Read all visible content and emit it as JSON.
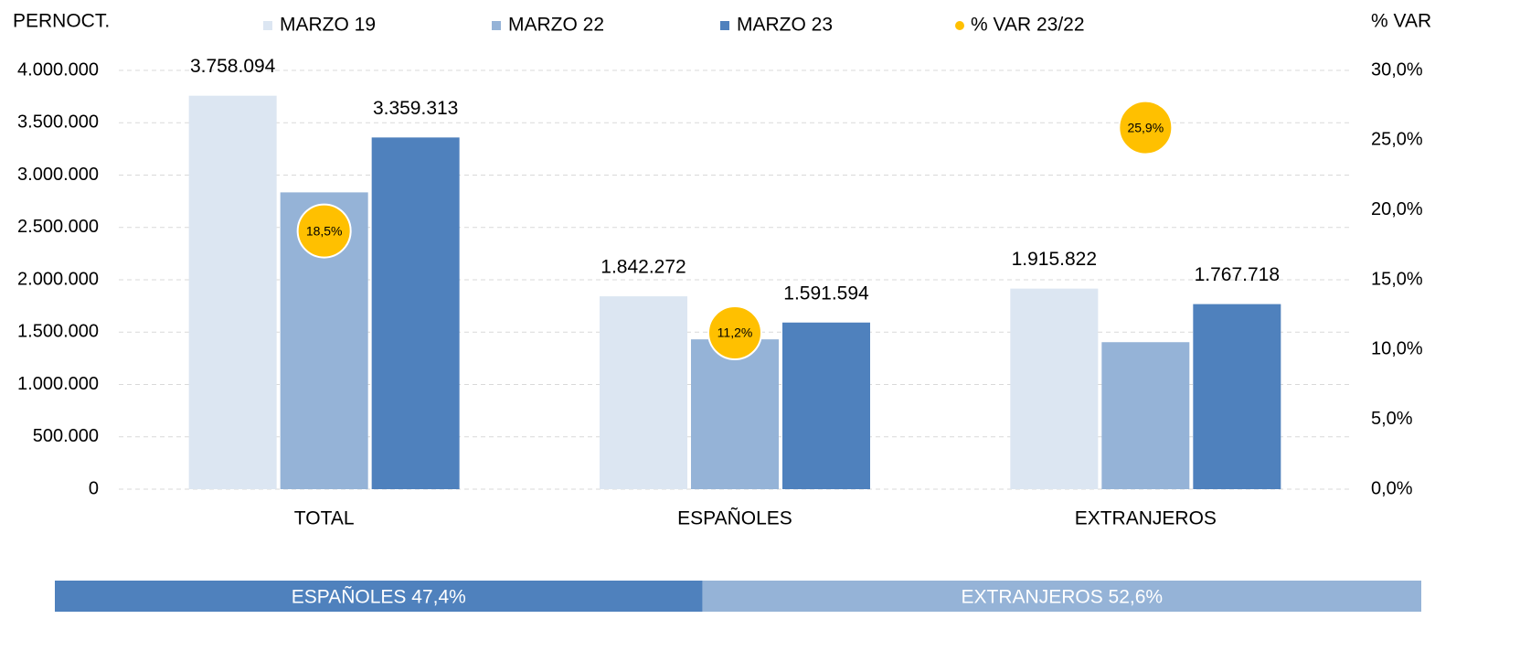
{
  "chart_data": [
    {
      "type": "bar",
      "y_label": "PERNOCT.",
      "y2_label": "% VAR",
      "categories": [
        "TOTAL",
        "ESPAÑOLES",
        "EXTRANJEROS"
      ],
      "series": [
        {
          "name": "MARZO 19",
          "color": "#dce6f2",
          "values": [
            3758094,
            1842272,
            1915822
          ],
          "value_labels": [
            "3.758.094",
            "1.842.272",
            "1.915.822"
          ]
        },
        {
          "name": "MARZO 22",
          "color": "#95b3d7",
          "values": [
            2835000,
            1431000,
            1404000
          ]
        },
        {
          "name": "MARZO 23",
          "color": "#4f81bd",
          "values": [
            3359313,
            1591594,
            1767718
          ],
          "value_labels": [
            "3.359.313",
            "1.591.594",
            "1.767.718"
          ]
        },
        {
          "name": "% VAR 23/22",
          "color": "#ffc000",
          "axis": "y2",
          "values": [
            18.5,
            11.2,
            25.9
          ],
          "value_labels": [
            "18,5%",
            "11,2%",
            "25,9%"
          ]
        }
      ],
      "ylim": [
        0,
        4000000
      ],
      "yticks": [
        0,
        {
          "value": 500000,
          "label": "500.000"
        },
        {
          "value": 1000000,
          "label": "1.000.000"
        },
        {
          "value": 1500000,
          "label": "1.500.000"
        },
        {
          "value": 2000000,
          "label": "2.000.000"
        },
        {
          "value": 2500000,
          "label": "2.500.000"
        },
        {
          "value": 3000000,
          "label": "3.000.000"
        },
        {
          "value": 3500000,
          "label": "3.500.000"
        },
        {
          "value": 4000000,
          "label": "4.000.000"
        }
      ],
      "y2lim": [
        0,
        30
      ],
      "y2ticks": [
        {
          "value": 0,
          "label": "0,0%"
        },
        {
          "value": 5,
          "label": "5,0%"
        },
        {
          "value": 10,
          "label": "10,0%"
        },
        {
          "value": 15,
          "label": "15,0%"
        },
        {
          "value": 20,
          "label": "20,0%"
        },
        {
          "value": 25,
          "label": "25,0%"
        },
        {
          "value": 30,
          "label": "30,0%"
        }
      ],
      "grid": true
    },
    {
      "type": "share",
      "segments": [
        {
          "label": "ESPAÑOLES 47,4%",
          "value": 47.4,
          "color": "#4f81bd"
        },
        {
          "label": "EXTRANJEROS 52,6%",
          "value": 52.6,
          "color": "#95b3d7"
        }
      ]
    }
  ]
}
